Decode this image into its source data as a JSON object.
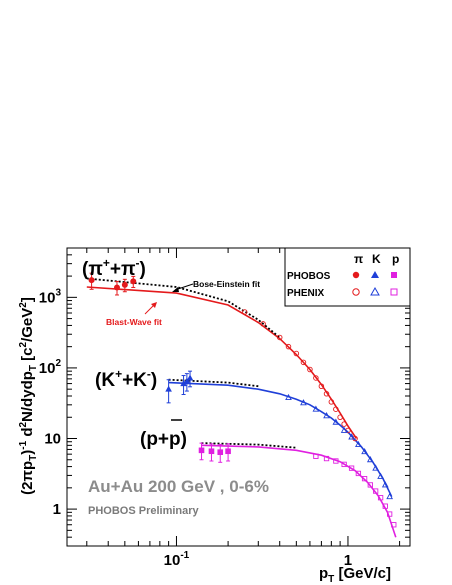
{
  "chart_data": {
    "type": "scatter",
    "xlabel_main": "p",
    "xlabel_sub": "T",
    "xlabel_rest": " [GeV/c]",
    "ylabel": "(2πp_T)^-1 d^2N/dydp_T [c^2/GeV^2]",
    "x_log": true,
    "y_log": true,
    "xlim": [
      0.023,
      2.3
    ],
    "ylim": [
      0.3,
      5000
    ],
    "xticks": [
      {
        "v": 0.1,
        "base": "10",
        "exp": "-1"
      },
      {
        "v": 1,
        "base": "1",
        "exp": ""
      }
    ],
    "yticks": [
      {
        "v": 1,
        "base": "1",
        "exp": ""
      },
      {
        "v": 10,
        "base": "10",
        "exp": ""
      },
      {
        "v": 100,
        "base": "10",
        "exp": "2"
      },
      {
        "v": 1000,
        "base": "10",
        "exp": "3"
      }
    ],
    "species": [
      {
        "name": "pi",
        "color": "#e41a1c",
        "label_parts": [
          "(π",
          "+",
          "+π",
          "-",
          ")"
        ],
        "phobos": [
          [
            0.032,
            1750
          ],
          [
            0.045,
            1380
          ],
          [
            0.05,
            1500
          ],
          [
            0.056,
            1680
          ]
        ],
        "phobos_err": [
          450,
          300,
          300,
          300
        ],
        "phenix": [
          [
            0.25,
            620
          ],
          [
            0.32,
            420
          ],
          [
            0.4,
            270
          ],
          [
            0.45,
            200
          ],
          [
            0.5,
            160
          ],
          [
            0.55,
            120
          ],
          [
            0.6,
            95
          ],
          [
            0.65,
            72
          ],
          [
            0.7,
            55
          ],
          [
            0.75,
            43
          ],
          [
            0.8,
            33
          ],
          [
            0.85,
            26
          ],
          [
            0.9,
            20
          ],
          [
            0.95,
            16
          ],
          [
            1.0,
            13
          ],
          [
            1.1,
            10
          ]
        ],
        "blastwave": {
          "x": [
            0.03,
            0.1,
            0.2,
            0.3,
            0.4,
            0.5,
            0.6,
            0.7,
            0.8,
            0.9,
            1.0,
            1.12
          ],
          "y": [
            1400,
            1150,
            780,
            440,
            260,
            155,
            95,
            58,
            36,
            23,
            15,
            10
          ]
        },
        "bose": {
          "x": [
            0.03,
            0.1,
            0.2,
            0.3,
            0.4
          ],
          "y": [
            1850,
            1400,
            880,
            480,
            270
          ]
        }
      },
      {
        "name": "K",
        "color": "#1f3fd8",
        "label_parts": [
          "(K",
          "+",
          "+K",
          "-",
          ")"
        ],
        "phobos": [
          [
            0.09,
            50
          ],
          [
            0.11,
            60
          ],
          [
            0.115,
            65
          ],
          [
            0.12,
            72
          ]
        ],
        "phobos_err": [
          18,
          18,
          18,
          18
        ],
        "phenix": [
          [
            0.45,
            38
          ],
          [
            0.55,
            32
          ],
          [
            0.65,
            26
          ],
          [
            0.75,
            21
          ],
          [
            0.85,
            17
          ],
          [
            0.95,
            13
          ],
          [
            1.05,
            10.5
          ],
          [
            1.15,
            8.2
          ],
          [
            1.25,
            6.5
          ],
          [
            1.35,
            5
          ],
          [
            1.45,
            3.8
          ],
          [
            1.55,
            2.9
          ],
          [
            1.65,
            2.2
          ],
          [
            1.75,
            1.5
          ]
        ],
        "blastwave": {
          "x": [
            0.09,
            0.2,
            0.3,
            0.4,
            0.5,
            0.6,
            0.7,
            0.8,
            0.9,
            1.0,
            1.2,
            1.4,
            1.6,
            1.8
          ],
          "y": [
            62,
            57,
            50,
            43,
            36,
            30,
            24,
            19.5,
            15.5,
            12.3,
            7.6,
            4.6,
            2.7,
            1.5
          ]
        },
        "bose": {
          "x": [
            0.09,
            0.2,
            0.3
          ],
          "y": [
            68,
            62,
            55
          ]
        }
      },
      {
        "name": "p",
        "color": "#e020e0",
        "label_parts": [
          "(p+p)"
        ],
        "phobos": [
          [
            0.14,
            6.8
          ],
          [
            0.16,
            6.6
          ],
          [
            0.18,
            6.4
          ],
          [
            0.2,
            6.6
          ]
        ],
        "phobos_err": [
          1.8,
          1.8,
          1.8,
          1.8
        ],
        "phenix": [
          [
            0.65,
            5.6
          ],
          [
            0.75,
            5.2
          ],
          [
            0.85,
            4.8
          ],
          [
            0.95,
            4.3
          ],
          [
            1.05,
            3.8
          ],
          [
            1.15,
            3.2
          ],
          [
            1.25,
            2.7
          ],
          [
            1.35,
            2.2
          ],
          [
            1.45,
            1.8
          ],
          [
            1.55,
            1.45
          ],
          [
            1.65,
            1.1
          ],
          [
            1.75,
            0.85
          ],
          [
            1.85,
            0.6
          ]
        ],
        "blastwave": {
          "x": [
            0.14,
            0.3,
            0.5,
            0.7,
            0.9,
            1.1,
            1.3,
            1.5,
            1.7,
            1.9
          ],
          "y": [
            8.0,
            7.6,
            6.8,
            5.8,
            4.7,
            3.5,
            2.4,
            1.55,
            0.9,
            0.4
          ]
        },
        "bose": {
          "x": [
            0.14,
            0.3,
            0.5
          ],
          "y": [
            8.6,
            8.2,
            7.4
          ]
        }
      }
    ],
    "legend": {
      "header": [
        "π",
        "K",
        "p"
      ],
      "rows": [
        "PHOBOS",
        "PHENIX"
      ],
      "placement": "top-right"
    },
    "annotations": {
      "bose_einstein": "Bose-Einstein fit",
      "blast_wave": "Blast-Wave fit",
      "system": "Au+Au 200 GeV , 0-6%",
      "preliminary": "PHOBOS Preliminary"
    }
  }
}
